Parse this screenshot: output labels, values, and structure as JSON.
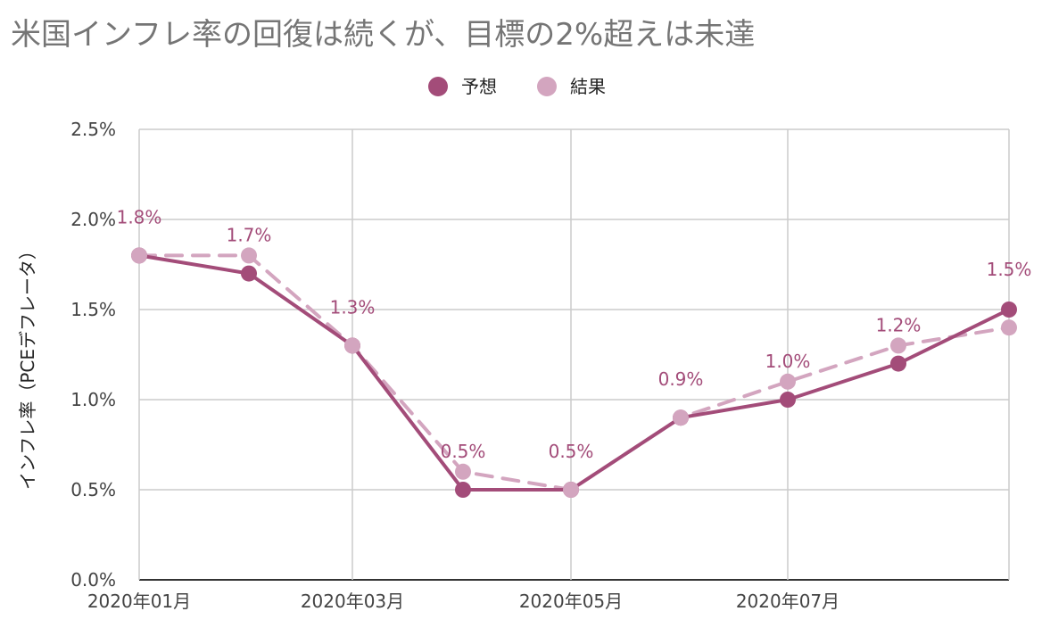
{
  "chart_data": {
    "type": "line",
    "title": "米国インフレ率の回復は続くが、目標の2%超えは未達",
    "ylabel": "インフレ率（PCEデフレータ）",
    "xlabel": "",
    "x": [
      "2020-01",
      "2020-02",
      "2020-03",
      "2020-04",
      "2020-05",
      "2020-06",
      "2020-07",
      "2020-08",
      "2020-09"
    ],
    "x_tick_labels": [
      "2020年01月",
      "2020年03月",
      "2020年05月",
      "2020年07月"
    ],
    "x_tick_values": [
      "2020-01",
      "2020-03",
      "2020-05",
      "2020-07"
    ],
    "y_tick_labels": [
      "0.0%",
      "0.5%",
      "1.0%",
      "1.5%",
      "2.0%",
      "2.5%"
    ],
    "y_tick_values": [
      0.0,
      0.5,
      1.0,
      1.5,
      2.0,
      2.5
    ],
    "ylim": [
      0.0,
      2.5
    ],
    "grid": true,
    "legend_position": "top",
    "series": [
      {
        "name": "予想",
        "color": "#a34c79",
        "line_style": "solid",
        "values": [
          1.8,
          1.7,
          1.3,
          0.5,
          0.5,
          0.9,
          1.0,
          1.2,
          1.5
        ],
        "data_labels": [
          "1.8%",
          "1.7%",
          "1.3%",
          "0.5%",
          "0.5%",
          "0.9%",
          "1.0%",
          "1.2%",
          "1.5%"
        ]
      },
      {
        "name": "結果",
        "color": "#d3a5bf",
        "line_style": "dashed",
        "values": [
          1.8,
          1.8,
          1.3,
          0.6,
          0.5,
          0.9,
          1.1,
          1.3,
          1.4
        ]
      }
    ]
  }
}
